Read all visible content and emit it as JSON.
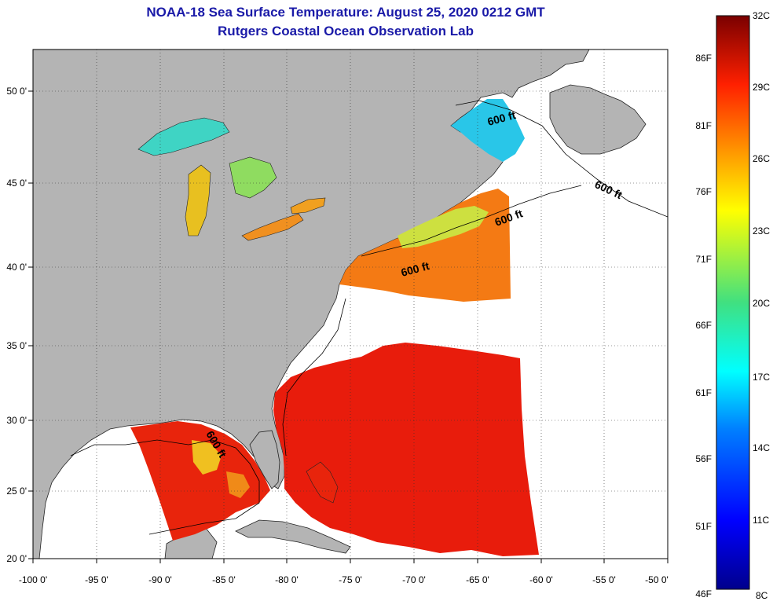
{
  "header": {
    "title": "NOAA-18 Sea Surface Temperature:  August 25, 2020 0212 GMT",
    "subtitle": "Rutgers Coastal Ocean Observation Lab"
  },
  "axes": {
    "lat_labels": [
      "50 0'",
      "45 0'",
      "40 0'",
      "35 0'",
      "30 0'",
      "25 0'",
      "20 0'"
    ],
    "lon_labels": [
      "-100 0'",
      "-95 0'",
      "-90 0'",
      "-85 0'",
      "-80 0'",
      "-75 0'",
      "-70 0'",
      "-65 0'",
      "-60 0'",
      "-55 0'",
      "-50 0'"
    ]
  },
  "contour_labels": [
    "600 ft",
    "600 ft",
    "600 ft",
    "600 ft",
    "600 ft"
  ],
  "colorbar": {
    "celsius": [
      "32C",
      "29C",
      "26C",
      "23C",
      "20C",
      "17C",
      "14C",
      "11C",
      "8C"
    ],
    "fahrenheit": [
      "86F",
      "81F",
      "76F",
      "71F",
      "66F",
      "61F",
      "56F",
      "51F",
      "46F"
    ]
  },
  "colors": {
    "land": "#b4b4b4",
    "ocean": "#ffffff",
    "title": "#1a1aa8",
    "warm": "#e81c0c",
    "cool": "#1e90ff"
  }
}
